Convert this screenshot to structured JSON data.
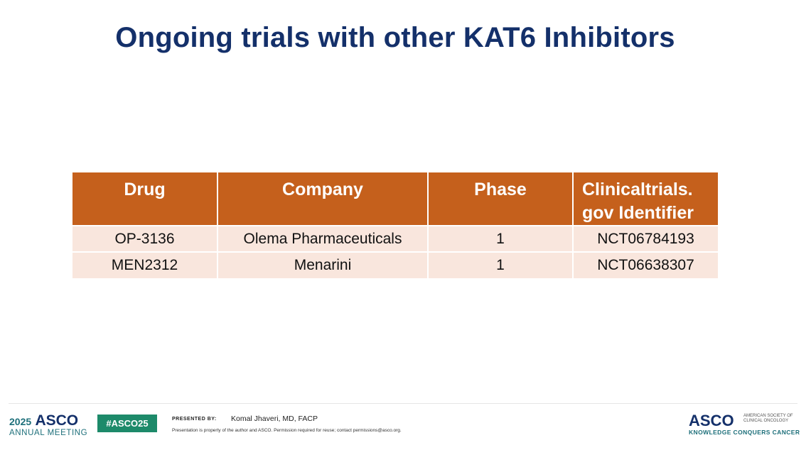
{
  "slide": {
    "title": "Ongoing trials with other KAT6 Inhibitors"
  },
  "table": {
    "headers": [
      "Drug",
      "Company",
      "Phase",
      "Clinicaltrials.",
      "gov Identifier"
    ],
    "rows": [
      {
        "drug": "OP-3136",
        "company": "Olema Pharmaceuticals",
        "phase": "1",
        "identifier": "NCT06784193"
      },
      {
        "drug": "MEN2312",
        "company": "Menarini",
        "phase": "1",
        "identifier": "NCT06638307"
      }
    ],
    "colors": {
      "header_bg": "#c5601c",
      "row_bg": "#f9e6dd"
    }
  },
  "footer": {
    "meeting_year": "2025",
    "meeting_org": "ASCO",
    "meeting_name": "ANNUAL MEETING",
    "hashtag": "#ASCO25",
    "presented_by_label": "PRESENTED BY:",
    "presenter": "Komal Jhaveri, MD, FACP",
    "disclaimer": "Presentation is property of the author and ASCO. Permission required for reuse; contact permissions@asco.org.",
    "org_logo_word": "ASCO",
    "org_full_name": "AMERICAN SOCIETY OF CLINICAL ONCOLOGY",
    "org_tagline": "KNOWLEDGE CONQUERS CANCER"
  },
  "colors": {
    "title": "#14306a",
    "accent_teal": "#1d6f7a",
    "badge_green": "#1d8a6a"
  }
}
